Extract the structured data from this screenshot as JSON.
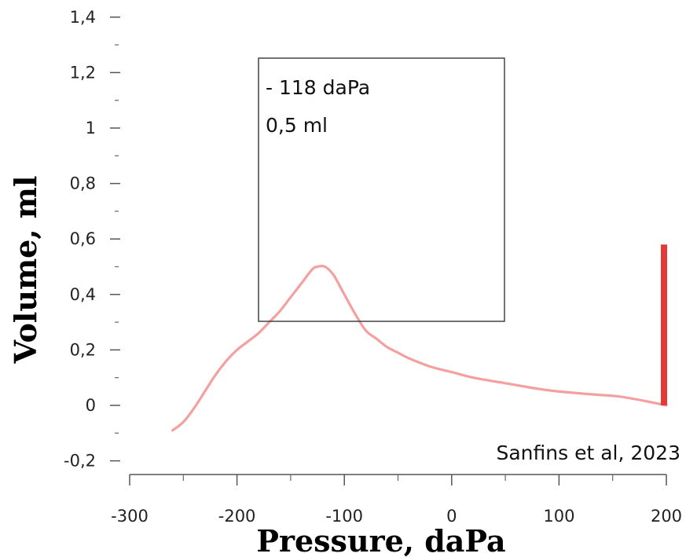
{
  "chart_data": {
    "type": "line",
    "xlabel": "Pressure, daPa",
    "ylabel": "Volume, ml",
    "x_ticks": [
      -300,
      -200,
      -100,
      0,
      100,
      200
    ],
    "x_tick_labels": [
      "-300",
      "-200",
      "-100",
      "0",
      "100",
      "200"
    ],
    "y_ticks": [
      1.4,
      1.2,
      1,
      0.8,
      0.6,
      0.4,
      0.2,
      0,
      -0.2
    ],
    "y_tick_labels": [
      "1,4",
      "1,2",
      "1",
      "0,8",
      "0,6",
      "0,4",
      "0,2",
      "0",
      "-0,2"
    ],
    "xlim": [
      -300,
      200
    ],
    "ylim": [
      -0.2,
      1.4
    ],
    "grid": false,
    "series": [
      {
        "color": "#f4a0a0",
        "x": [
          -260,
          -250,
          -240,
          -230,
          -220,
          -210,
          -200,
          -190,
          -180,
          -170,
          -160,
          -150,
          -140,
          -130,
          -125,
          -118,
          -110,
          -100,
          -90,
          -80,
          -70,
          -60,
          -50,
          -40,
          -20,
          0,
          20,
          50,
          80,
          100,
          130,
          160,
          200
        ],
        "y": [
          -0.09,
          -0.06,
          -0.01,
          0.05,
          0.11,
          0.16,
          0.2,
          0.23,
          0.26,
          0.3,
          0.34,
          0.39,
          0.44,
          0.49,
          0.5,
          0.5,
          0.47,
          0.4,
          0.33,
          0.27,
          0.24,
          0.21,
          0.19,
          0.17,
          0.14,
          0.12,
          0.1,
          0.08,
          0.06,
          0.05,
          0.04,
          0.03,
          0.0
        ]
      }
    ],
    "marker": {
      "x": 200,
      "y_from": 0.0,
      "y_to": 0.58,
      "color": "#e53935"
    },
    "annotation": {
      "lines": [
        "- 118 daPa",
        "0,5 ml"
      ],
      "peak_pressure_daPa": -118,
      "peak_volume_ml": 0.5
    },
    "credit": "Sanfins et al, 2023"
  }
}
